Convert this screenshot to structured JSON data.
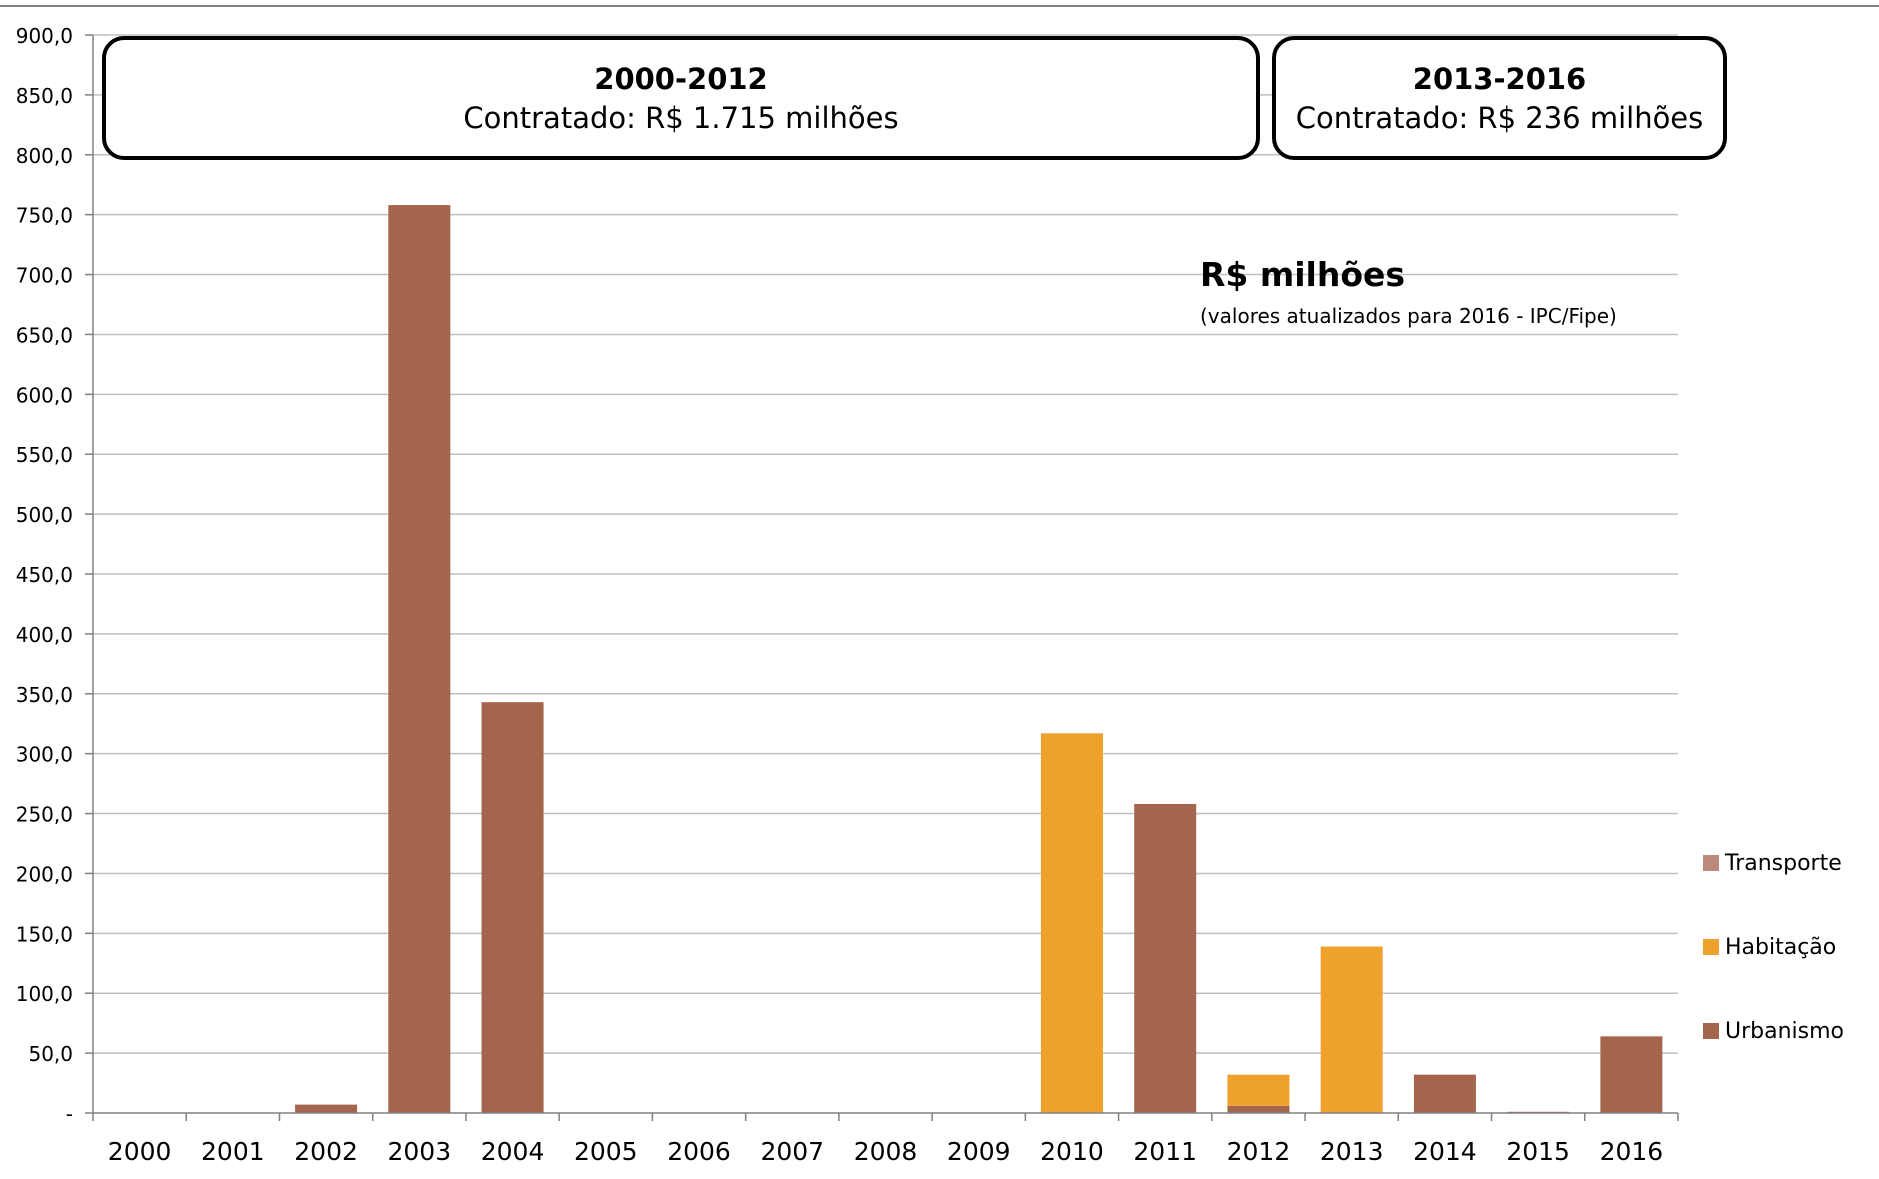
{
  "chart_data": {
    "type": "bar",
    "stacked": true,
    "categories": [
      "2000",
      "2001",
      "2002",
      "2003",
      "2004",
      "2005",
      "2006",
      "2007",
      "2008",
      "2009",
      "2010",
      "2011",
      "2012",
      "2013",
      "2014",
      "2015",
      "2016"
    ],
    "series": [
      {
        "name": "Urbanismo",
        "color": "#A5644C",
        "values": [
          0,
          0,
          7,
          758,
          343,
          0,
          0,
          0,
          0,
          0,
          0,
          258,
          6,
          0,
          32,
          1,
          64
        ]
      },
      {
        "name": "Habitação",
        "color": "#EFA12D",
        "values": [
          0,
          0,
          0,
          0,
          0,
          0,
          0,
          0,
          0,
          0,
          317,
          0,
          26,
          139,
          0,
          0,
          0
        ]
      },
      {
        "name": "Transporte",
        "color": "#BC8A7C",
        "values": [
          0,
          0,
          0,
          0,
          0,
          0,
          0,
          0,
          0,
          0,
          0,
          0,
          0,
          0,
          0,
          0,
          0
        ]
      }
    ],
    "legend_order": [
      "Transporte",
      "Habitação",
      "Urbanismo"
    ],
    "legend_position": "right",
    "ylim": [
      0,
      900
    ],
    "yticks": [
      "-",
      "50,0",
      "100,0",
      "150,0",
      "200,0",
      "250,0",
      "300,0",
      "350,0",
      "400,0",
      "450,0",
      "500,0",
      "550,0",
      "600,0",
      "650,0",
      "700,0",
      "750,0",
      "800,0",
      "850,0",
      "900,0"
    ],
    "grid": true,
    "title": "R$ milhões",
    "subtitle": "(valores atualizados para 2016 - IPC/Fipe)"
  },
  "periods": [
    {
      "label": "2000-2012",
      "contracted": "Contratado: R$  1.715 milhões"
    },
    {
      "label": "2013-2016",
      "contracted": "Contratado:  R$ 236 milhões"
    }
  ],
  "colors": {
    "grid": "#BFBFBF",
    "axis": "#808080",
    "border": "#000000"
  }
}
